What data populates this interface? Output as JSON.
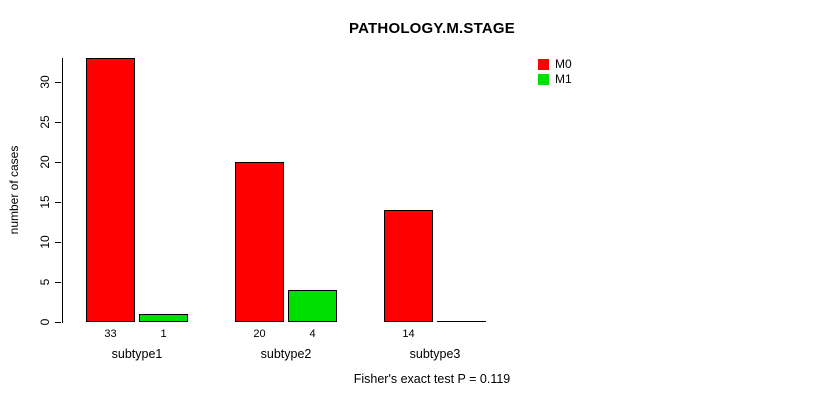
{
  "chart_data": {
    "type": "bar",
    "title": "PATHOLOGY.M.STAGE",
    "ylabel": "number of cases",
    "xlabel": "",
    "categories": [
      "subtype1",
      "subtype2",
      "subtype3"
    ],
    "series": [
      {
        "name": "M0",
        "color": "#ff0000",
        "values": [
          33,
          20,
          14
        ]
      },
      {
        "name": "M1",
        "color": "#00e000",
        "values": [
          1,
          4,
          0
        ]
      }
    ],
    "bar_count_labels": [
      [
        "33",
        "1"
      ],
      [
        "20",
        "4"
      ],
      [
        "14",
        ""
      ]
    ],
    "yticks": [
      0,
      5,
      10,
      15,
      20,
      25,
      30
    ],
    "ylim": [
      0,
      33
    ],
    "grid": false,
    "legend_position": "top-right",
    "footer": "Fisher's exact test P = 0.119"
  }
}
